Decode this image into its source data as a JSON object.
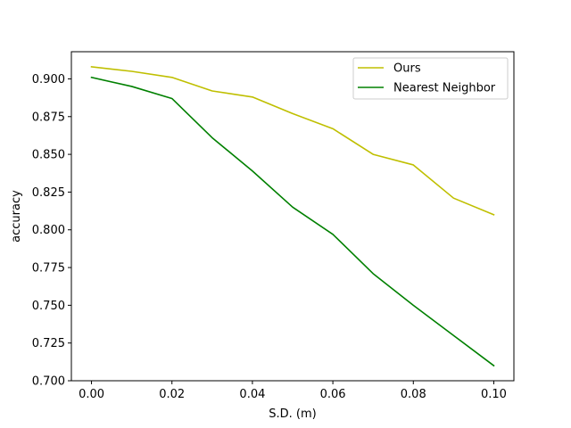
{
  "chart_data": {
    "type": "line",
    "title": "",
    "xlabel": "S.D. (m)",
    "ylabel": "accuracy",
    "xlim": [
      -0.005,
      0.105
    ],
    "ylim": [
      0.7,
      0.918
    ],
    "xticks": [
      0.0,
      0.02,
      0.04,
      0.06,
      0.08,
      0.1
    ],
    "xtick_labels": [
      "0.00",
      "0.02",
      "0.04",
      "0.06",
      "0.08",
      "0.10"
    ],
    "yticks": [
      0.7,
      0.725,
      0.75,
      0.775,
      0.8,
      0.825,
      0.85,
      0.875,
      0.9
    ],
    "ytick_labels": [
      "0.700",
      "0.725",
      "0.750",
      "0.775",
      "0.800",
      "0.825",
      "0.850",
      "0.875",
      "0.900"
    ],
    "grid": false,
    "legend_position": "top-right",
    "x": [
      0.0,
      0.01,
      0.02,
      0.03,
      0.04,
      0.05,
      0.06,
      0.07,
      0.08,
      0.09,
      0.1
    ],
    "series": [
      {
        "name": "Ours",
        "color": "#bfbf00",
        "values": [
          0.908,
          0.905,
          0.901,
          0.892,
          0.888,
          0.877,
          0.867,
          0.85,
          0.843,
          0.821,
          0.81
        ]
      },
      {
        "name": "Nearest Neighbor",
        "color": "#008000",
        "values": [
          0.901,
          0.895,
          0.887,
          0.861,
          0.839,
          0.815,
          0.797,
          0.771,
          0.75,
          0.73,
          0.71
        ]
      }
    ]
  }
}
